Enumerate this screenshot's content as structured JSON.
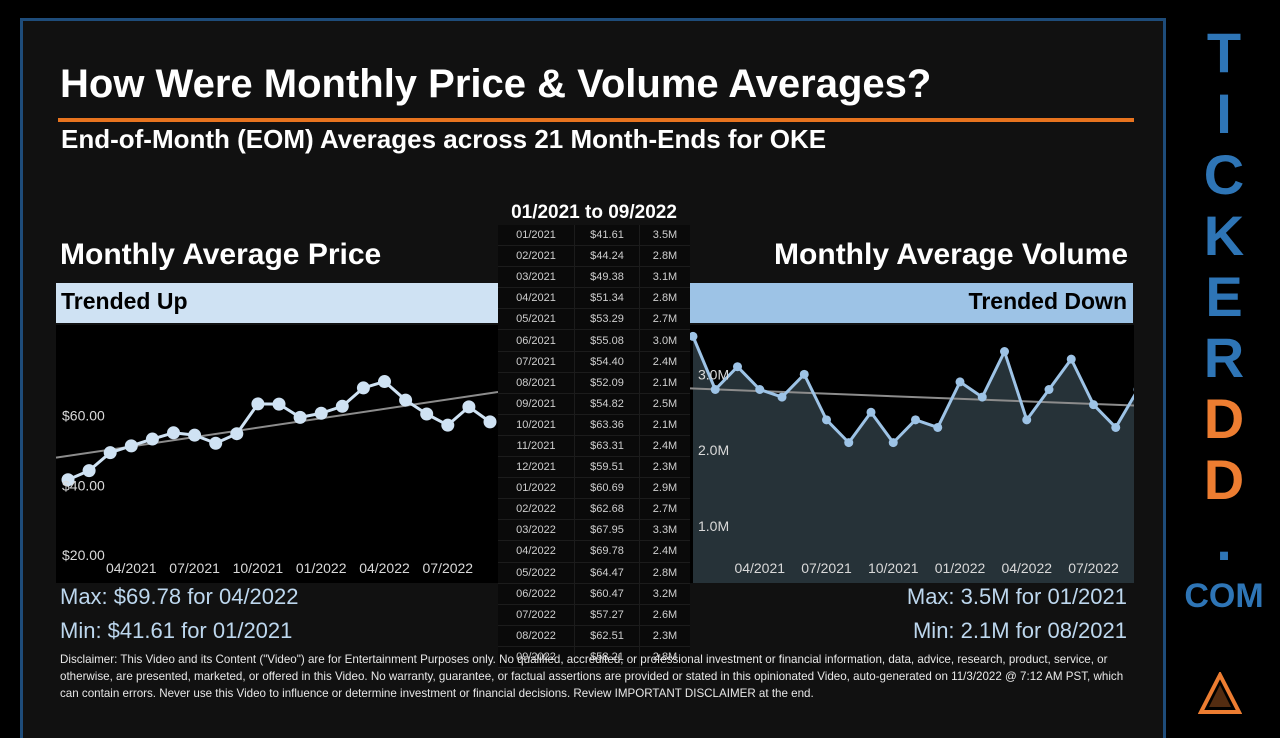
{
  "title": "How Were Monthly Price & Volume Averages?",
  "subtitle": "End-of-Month (EOM) Averages across 21 Month-Ends for OKE",
  "price_panel": {
    "title": "Monthly Average Price",
    "trend": "Trended Up",
    "max": "Max: $69.78 for 04/2022",
    "min": "Min: $41.61 for 01/2021"
  },
  "volume_panel": {
    "title": "Monthly Average Volume",
    "trend": "Trended Down",
    "max": "Max: 3.5M for 01/2021",
    "min": "Min: 2.1M for 08/2021"
  },
  "table": {
    "header": "01/2021 to 09/2022",
    "rows": [
      [
        "01/2021",
        "$41.61",
        "3.5M"
      ],
      [
        "02/2021",
        "$44.24",
        "2.8M"
      ],
      [
        "03/2021",
        "$49.38",
        "3.1M"
      ],
      [
        "04/2021",
        "$51.34",
        "2.8M"
      ],
      [
        "05/2021",
        "$53.29",
        "2.7M"
      ],
      [
        "06/2021",
        "$55.08",
        "3.0M"
      ],
      [
        "07/2021",
        "$54.40",
        "2.4M"
      ],
      [
        "08/2021",
        "$52.09",
        "2.1M"
      ],
      [
        "09/2021",
        "$54.82",
        "2.5M"
      ],
      [
        "10/2021",
        "$63.36",
        "2.1M"
      ],
      [
        "11/2021",
        "$63.31",
        "2.4M"
      ],
      [
        "12/2021",
        "$59.51",
        "2.3M"
      ],
      [
        "01/2022",
        "$60.69",
        "2.9M"
      ],
      [
        "02/2022",
        "$62.68",
        "2.7M"
      ],
      [
        "03/2022",
        "$67.95",
        "3.3M"
      ],
      [
        "04/2022",
        "$69.78",
        "2.4M"
      ],
      [
        "05/2022",
        "$64.47",
        "2.8M"
      ],
      [
        "06/2022",
        "$60.47",
        "3.2M"
      ],
      [
        "07/2022",
        "$57.27",
        "2.6M"
      ],
      [
        "08/2022",
        "$62.51",
        "2.3M"
      ],
      [
        "09/2022",
        "$58.21",
        "2.8M"
      ]
    ]
  },
  "chart_data": [
    {
      "type": "line",
      "x": [
        "01/2021",
        "02/2021",
        "03/2021",
        "04/2021",
        "05/2021",
        "06/2021",
        "07/2021",
        "08/2021",
        "09/2021",
        "10/2021",
        "11/2021",
        "12/2021",
        "01/2022",
        "02/2022",
        "03/2022",
        "04/2022",
        "05/2022",
        "06/2022",
        "07/2022",
        "08/2022",
        "09/2022"
      ],
      "series": [
        {
          "values": [
            41.61,
            44.24,
            49.38,
            51.34,
            53.29,
            55.08,
            54.4,
            52.09,
            54.82,
            63.36,
            63.31,
            59.51,
            60.69,
            62.68,
            67.95,
            69.78,
            64.47,
            60.47,
            57.27,
            62.51,
            58.21
          ]
        }
      ],
      "trendline": true,
      "yticks": [
        "$20.00",
        "$40.00",
        "$60.00"
      ],
      "ytick_values": [
        20,
        40,
        60
      ],
      "xticks": [
        "04/2021",
        "07/2021",
        "10/2021",
        "01/2022",
        "04/2022",
        "07/2022"
      ],
      "ylim": [
        12,
        86
      ],
      "grid": false,
      "colors": {
        "line": "#cfe2f3",
        "trend": "#8c8c8c",
        "background": "#000000"
      }
    },
    {
      "type": "area",
      "x": [
        "01/2021",
        "02/2021",
        "03/2021",
        "04/2021",
        "05/2021",
        "06/2021",
        "07/2021",
        "08/2021",
        "09/2021",
        "10/2021",
        "11/2021",
        "12/2021",
        "01/2022",
        "02/2022",
        "03/2022",
        "04/2022",
        "05/2022",
        "06/2022",
        "07/2022",
        "08/2022",
        "09/2022"
      ],
      "series": [
        {
          "values": [
            3.5,
            2.8,
            3.1,
            2.8,
            2.7,
            3.0,
            2.4,
            2.1,
            2.5,
            2.1,
            2.4,
            2.3,
            2.9,
            2.7,
            3.3,
            2.4,
            2.8,
            3.2,
            2.6,
            2.3,
            2.8
          ]
        }
      ],
      "trendline": true,
      "yticks": [
        "1.0M",
        "2.0M",
        "3.0M"
      ],
      "ytick_values": [
        1.0,
        2.0,
        3.0
      ],
      "xticks": [
        "04/2021",
        "07/2021",
        "10/2021",
        "01/2022",
        "04/2022",
        "07/2022"
      ],
      "ylim": [
        0.25,
        3.65
      ],
      "grid": false,
      "colors": {
        "line": "#9dc3e6",
        "fill": "#263238",
        "trend": "#8c8c8c",
        "background": "#000000"
      }
    }
  ],
  "disclaimer": "Disclaimer: This Video and its Content (\"Video\") are for Entertainment Purposes only. No qualified, accredited, or professional investment or financial information, data, advice, research, product, service, or otherwise, are presented, marketed, or offered in this Video. No warranty, guarantee, or factual assertions are provided or stated in this opinionated Video, auto-generated on 11/3/2022 @ 7:12 AM PST, which can contain errors. Never use this Video to influence or determine investment or financial decisions. Review IMPORTANT DISCLAIMER at the end.",
  "brand": {
    "letters": [
      "T",
      "I",
      "C",
      "K",
      "E",
      "R",
      "D",
      "D",
      "."
    ],
    "suffix": "COM",
    "colors": {
      "blue": "#2e75b6",
      "orange": "#ed7d31"
    }
  }
}
